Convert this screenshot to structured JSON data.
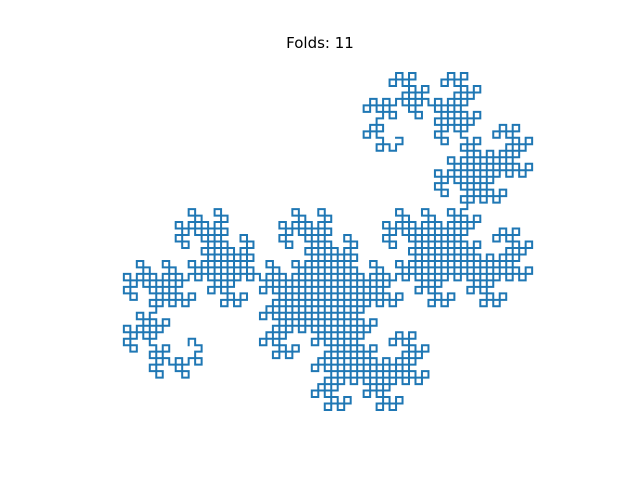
{
  "title": "Folds: 11",
  "folds": 11,
  "line_color": "#1f77b4",
  "background": "#ffffff",
  "axes_visible": false
}
